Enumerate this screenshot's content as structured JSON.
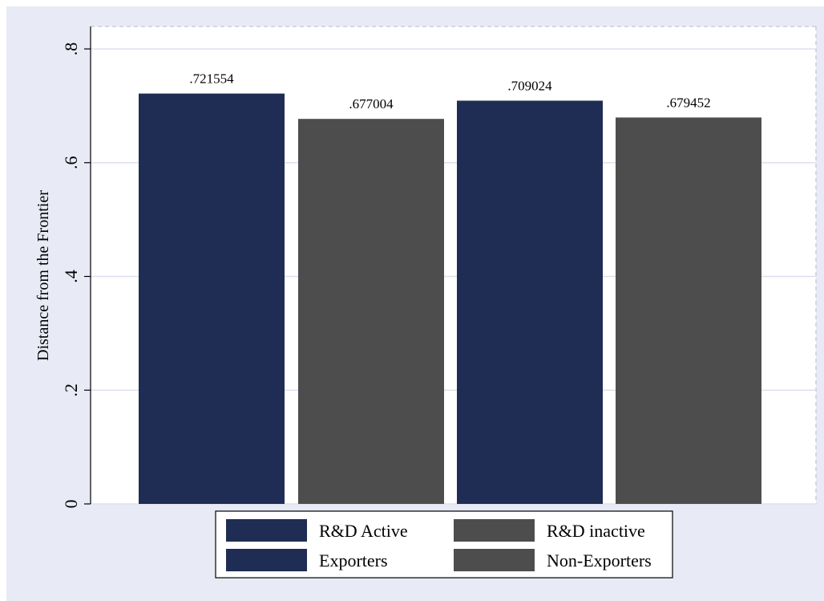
{
  "chart_data": {
    "type": "bar",
    "title": "",
    "xlabel": "",
    "ylabel": "Distance from the Frontier",
    "ylim": [
      0,
      0.8
    ],
    "yticks": [
      0,
      0.2,
      0.4,
      0.6,
      0.8
    ],
    "ytick_labels": [
      "0",
      ".2",
      ".4",
      ".6",
      ".8"
    ],
    "grid": true,
    "legend_position": "bottom",
    "bars": [
      {
        "value": 0.721554,
        "label": ".721554",
        "color": "#1f2d54"
      },
      {
        "value": 0.677004,
        "label": ".677004",
        "color": "#4d4d4d"
      },
      {
        "value": 0.709024,
        "label": ".709024",
        "color": "#1f2d54"
      },
      {
        "value": 0.679452,
        "label": ".679452",
        "color": "#4d4d4d"
      }
    ],
    "legend": [
      {
        "label": "R&D Active",
        "color": "#1f2d54"
      },
      {
        "label": "R&D inactive",
        "color": "#4d4d4d"
      },
      {
        "label": "Exporters",
        "color": "#1f2d54"
      },
      {
        "label": "Non-Exporters",
        "color": "#4d4d4d"
      }
    ],
    "background_color": "#e8eaf5",
    "plot_background_color": "#ffffff"
  }
}
